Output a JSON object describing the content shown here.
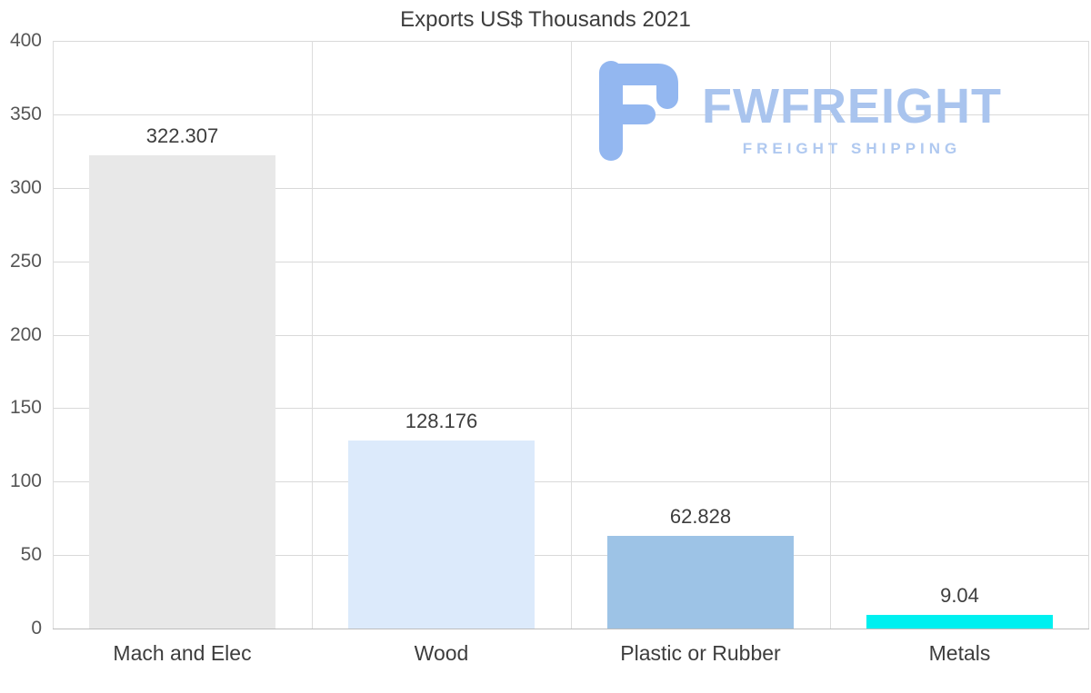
{
  "title": "Exports US$ Thousands 2021",
  "logo": {
    "name": "FWFREIGHT",
    "subtitle": "FREIGHT SHIPPING",
    "color": "#a9c4ee",
    "icon_color": "#93b7f0"
  },
  "chart_data": {
    "type": "bar",
    "title": "Exports US$ Thousands 2021",
    "categories": [
      "Mach and Elec",
      "Wood",
      "Plastic or Rubber",
      "Metals"
    ],
    "values": [
      322.307,
      128.176,
      62.828,
      9.04
    ],
    "value_labels": [
      "322.307",
      "128.176",
      "62.828",
      "9.04"
    ],
    "bar_colors": [
      "#e8e8e8",
      "#dceafb",
      "#9dc3e6",
      "#00f0f0"
    ],
    "xlabel": "",
    "ylabel": "",
    "ylim": [
      0,
      400
    ],
    "yticks": [
      0,
      50,
      100,
      150,
      200,
      250,
      300,
      350,
      400
    ],
    "grid": true,
    "legend": "none"
  }
}
